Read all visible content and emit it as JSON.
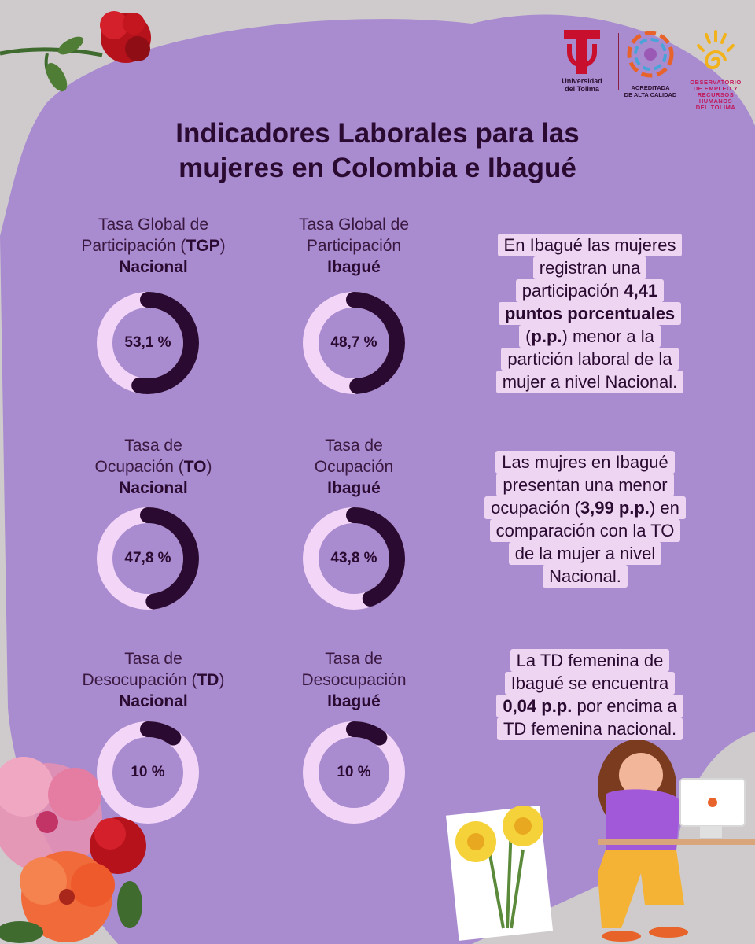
{
  "logos": {
    "universidad": "Universidad\ndel Tolima",
    "acreditada": "ACREDITADA\nDE ALTA CALIDAD",
    "observatorio": "OBSERVATORIO\nDE EMPLEO Y\nRECURSOS HUMANOS\nDEL TOLIMA"
  },
  "title": "Indicadores Laborales para las\nmujeres en Colombia e Ibagué",
  "colors": {
    "background": "#a98bd0",
    "ring_track": "#f3d5f7",
    "ring_fill": "#2a0a30",
    "note_highlight": "#eed6f3"
  },
  "chart_data": [
    {
      "type": "pie",
      "label_line1": "Tasa Global de",
      "label_line2_pre": "Participación (",
      "label_line2_bold": "TGP",
      "label_line2_post": ")",
      "label_line3": "Nacional",
      "value": 53.1,
      "display": "53,1 %"
    },
    {
      "type": "pie",
      "label_line1": "Tasa Global de",
      "label_line2_pre": "Participación",
      "label_line2_bold": "",
      "label_line2_post": "",
      "label_line3": "Ibagué",
      "value": 48.7,
      "display": "48,7 %"
    },
    {
      "type": "pie",
      "label_line1": "Tasa de",
      "label_line2_pre": "Ocupación (",
      "label_line2_bold": "TO",
      "label_line2_post": ")",
      "label_line3": "Nacional",
      "value": 47.8,
      "display": "47,8 %"
    },
    {
      "type": "pie",
      "label_line1": "Tasa de",
      "label_line2_pre": "Ocupación",
      "label_line2_bold": "",
      "label_line2_post": "",
      "label_line3": "Ibagué",
      "value": 43.8,
      "display": "43,8 %"
    },
    {
      "type": "pie",
      "label_line1": "Tasa de",
      "label_line2_pre": "Desocupación (",
      "label_line2_bold": "TD",
      "label_line2_post": ")",
      "label_line3": "Nacional",
      "value": 10,
      "display": "10 %"
    },
    {
      "type": "pie",
      "label_line1": "Tasa de",
      "label_line2_pre": "Desocupación",
      "label_line2_bold": "",
      "label_line2_post": "",
      "label_line3": "Ibagué",
      "value": 10,
      "display": "10 %"
    }
  ],
  "notes": [
    {
      "lines": [
        [
          {
            "t": "En Ibagué  las mujeres"
          }
        ],
        [
          {
            "t": "registran una"
          }
        ],
        [
          {
            "t": "participación "
          },
          {
            "t": "4,41",
            "b": true
          }
        ],
        [
          {
            "t": "puntos porcentuales",
            "b": true
          }
        ],
        [
          {
            "t": "("
          },
          {
            "t": "p.p.",
            "b": true
          },
          {
            "t": ") menor a la"
          }
        ],
        [
          {
            "t": "partición laboral de la"
          }
        ],
        [
          {
            "t": "mujer a nivel Nacional."
          }
        ]
      ]
    },
    {
      "lines": [
        [
          {
            "t": "Las mujres en Ibagué"
          }
        ],
        [
          {
            "t": "presentan una menor"
          }
        ],
        [
          {
            "t": "ocupación ("
          },
          {
            "t": "3,99 p.p.",
            "b": true
          },
          {
            "t": ") en"
          }
        ],
        [
          {
            "t": "comparación con la TO"
          }
        ],
        [
          {
            "t": "de la mujer a nivel"
          }
        ],
        [
          {
            "t": "Nacional."
          }
        ]
      ]
    },
    {
      "lines": [
        [
          {
            "t": "La TD femenina de"
          }
        ],
        [
          {
            "t": "Ibagué se encuentra"
          }
        ],
        [
          {
            "t": "0,04 p.p.",
            "b": true
          },
          {
            "t": " por encima a"
          }
        ],
        [
          {
            "t": "TD femenina nacional."
          }
        ]
      ]
    }
  ]
}
